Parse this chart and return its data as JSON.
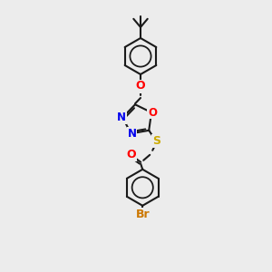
{
  "background_color": "#ececec",
  "bond_color": "#1a1a1a",
  "atom_colors": {
    "O": "#ff0000",
    "N": "#0000ee",
    "S": "#ccaa00",
    "Br": "#cc7700",
    "C": "#1a1a1a"
  },
  "figsize": [
    3.0,
    3.0
  ],
  "dpi": 100,
  "lw": 1.5
}
